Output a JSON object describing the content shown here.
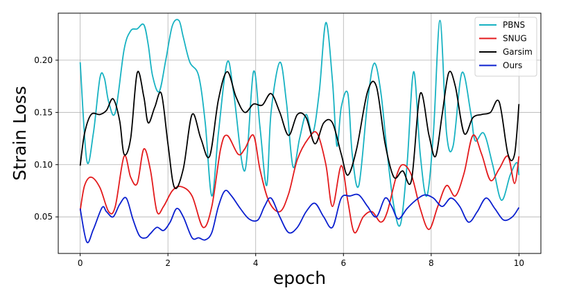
{
  "chart_data": {
    "type": "line",
    "title": "",
    "xlabel": "epoch",
    "ylabel": "Strain Loss",
    "xlim": [
      -0.5,
      10.5
    ],
    "ylim": [
      0.015,
      0.245
    ],
    "xticks": [
      0,
      2,
      4,
      6,
      8,
      10
    ],
    "xtick_labels": [
      "0",
      "2",
      "4",
      "6",
      "8",
      "10"
    ],
    "yticks": [
      0.05,
      0.1,
      0.15,
      0.2
    ],
    "ytick_labels": [
      "0.05",
      "0.10",
      "0.15",
      "0.20"
    ],
    "grid": true,
    "legend_position": "top-right",
    "series": [
      {
        "name": "PBNS",
        "color": "#17b2c2",
        "x": [
          0,
          0.15,
          0.3,
          0.45,
          0.55,
          0.65,
          0.8,
          1.0,
          1.15,
          1.3,
          1.45,
          1.55,
          1.65,
          1.8,
          1.95,
          2.1,
          2.25,
          2.35,
          2.5,
          2.7,
          2.85,
          3.0,
          3.15,
          3.35,
          3.5,
          3.75,
          3.95,
          4.1,
          4.25,
          4.35,
          4.55,
          4.7,
          4.85,
          5.0,
          5.15,
          5.3,
          5.45,
          5.6,
          5.75,
          5.85,
          5.95,
          6.1,
          6.2,
          6.35,
          6.55,
          6.7,
          6.85,
          7.0,
          7.15,
          7.3,
          7.45,
          7.6,
          7.75,
          7.9,
          8.05,
          8.2,
          8.35,
          8.5,
          8.7,
          8.9,
          9.0,
          9.2,
          9.4,
          9.6,
          9.8,
          9.95,
          10.0
        ],
        "values": [
          0.198,
          0.104,
          0.13,
          0.183,
          0.183,
          0.16,
          0.15,
          0.21,
          0.228,
          0.23,
          0.234,
          0.215,
          0.185,
          0.17,
          0.2,
          0.233,
          0.238,
          0.222,
          0.198,
          0.185,
          0.14,
          0.07,
          0.13,
          0.198,
          0.168,
          0.094,
          0.189,
          0.135,
          0.08,
          0.15,
          0.198,
          0.16,
          0.098,
          0.125,
          0.148,
          0.13,
          0.17,
          0.236,
          0.18,
          0.118,
          0.155,
          0.168,
          0.11,
          0.08,
          0.16,
          0.197,
          0.17,
          0.11,
          0.06,
          0.043,
          0.1,
          0.189,
          0.11,
          0.07,
          0.13,
          0.238,
          0.13,
          0.118,
          0.188,
          0.15,
          0.123,
          0.13,
          0.1,
          0.066,
          0.09,
          0.102,
          0.09
        ]
      },
      {
        "name": "SNUG",
        "color": "#e31a1c",
        "x": [
          0,
          0.1,
          0.25,
          0.45,
          0.65,
          0.8,
          1.0,
          1.15,
          1.3,
          1.45,
          1.6,
          1.75,
          1.9,
          2.1,
          2.3,
          2.55,
          2.8,
          3.0,
          3.2,
          3.35,
          3.6,
          3.75,
          3.95,
          4.1,
          4.3,
          4.55,
          4.75,
          4.95,
          5.2,
          5.4,
          5.6,
          5.75,
          5.95,
          6.1,
          6.25,
          6.45,
          6.65,
          6.85,
          7.0,
          7.2,
          7.35,
          7.55,
          7.75,
          7.95,
          8.15,
          8.35,
          8.55,
          8.75,
          8.95,
          9.15,
          9.35,
          9.55,
          9.75,
          9.9,
          10.0
        ],
        "values": [
          0.056,
          0.08,
          0.088,
          0.078,
          0.055,
          0.06,
          0.108,
          0.088,
          0.082,
          0.115,
          0.095,
          0.055,
          0.06,
          0.075,
          0.079,
          0.07,
          0.04,
          0.06,
          0.115,
          0.128,
          0.11,
          0.115,
          0.128,
          0.095,
          0.065,
          0.055,
          0.072,
          0.105,
          0.125,
          0.13,
          0.1,
          0.06,
          0.099,
          0.065,
          0.035,
          0.05,
          0.055,
          0.045,
          0.055,
          0.088,
          0.1,
          0.09,
          0.058,
          0.038,
          0.06,
          0.08,
          0.07,
          0.092,
          0.128,
          0.11,
          0.085,
          0.096,
          0.108,
          0.082,
          0.108
        ]
      },
      {
        "name": "Garsim",
        "color": "#000000",
        "x": [
          0,
          0.1,
          0.25,
          0.45,
          0.6,
          0.75,
          0.9,
          1.0,
          1.15,
          1.3,
          1.45,
          1.55,
          1.7,
          1.85,
          2.0,
          2.15,
          2.35,
          2.55,
          2.75,
          2.95,
          3.15,
          3.35,
          3.55,
          3.75,
          3.95,
          4.15,
          4.35,
          4.55,
          4.75,
          4.95,
          5.15,
          5.35,
          5.55,
          5.75,
          5.95,
          6.1,
          6.3,
          6.55,
          6.75,
          6.95,
          7.15,
          7.35,
          7.55,
          7.75,
          7.95,
          8.1,
          8.25,
          8.4,
          8.55,
          8.75,
          8.95,
          9.15,
          9.35,
          9.55,
          9.75,
          9.9,
          10.0
        ],
        "values": [
          0.099,
          0.13,
          0.148,
          0.148,
          0.152,
          0.163,
          0.142,
          0.11,
          0.125,
          0.188,
          0.165,
          0.14,
          0.155,
          0.168,
          0.12,
          0.078,
          0.096,
          0.148,
          0.125,
          0.108,
          0.162,
          0.189,
          0.165,
          0.15,
          0.158,
          0.157,
          0.168,
          0.15,
          0.128,
          0.148,
          0.145,
          0.12,
          0.14,
          0.14,
          0.11,
          0.09,
          0.115,
          0.17,
          0.175,
          0.12,
          0.088,
          0.094,
          0.085,
          0.168,
          0.128,
          0.108,
          0.148,
          0.188,
          0.175,
          0.13,
          0.145,
          0.148,
          0.15,
          0.16,
          0.11,
          0.11,
          0.158
        ]
      },
      {
        "name": "Ours",
        "color": "#0a1fcf",
        "x": [
          0,
          0.15,
          0.3,
          0.5,
          0.6,
          0.75,
          0.9,
          1.05,
          1.2,
          1.35,
          1.5,
          1.6,
          1.75,
          1.9,
          2.05,
          2.2,
          2.35,
          2.55,
          2.7,
          2.85,
          3.0,
          3.15,
          3.3,
          3.45,
          3.65,
          3.85,
          4.05,
          4.2,
          4.35,
          4.55,
          4.75,
          4.95,
          5.15,
          5.35,
          5.55,
          5.75,
          5.95,
          6.15,
          6.35,
          6.55,
          6.75,
          6.95,
          7.1,
          7.25,
          7.45,
          7.65,
          7.85,
          8.05,
          8.25,
          8.45,
          8.65,
          8.85,
          9.05,
          9.25,
          9.45,
          9.65,
          9.85,
          10.0
        ],
        "values": [
          0.058,
          0.026,
          0.038,
          0.059,
          0.055,
          0.05,
          0.062,
          0.068,
          0.048,
          0.032,
          0.03,
          0.034,
          0.04,
          0.037,
          0.045,
          0.058,
          0.05,
          0.03,
          0.03,
          0.028,
          0.035,
          0.06,
          0.075,
          0.07,
          0.058,
          0.048,
          0.047,
          0.06,
          0.068,
          0.05,
          0.035,
          0.04,
          0.055,
          0.063,
          0.05,
          0.04,
          0.068,
          0.07,
          0.071,
          0.06,
          0.05,
          0.068,
          0.06,
          0.048,
          0.058,
          0.066,
          0.071,
          0.068,
          0.06,
          0.068,
          0.06,
          0.045,
          0.055,
          0.068,
          0.058,
          0.047,
          0.05,
          0.059
        ]
      }
    ]
  }
}
